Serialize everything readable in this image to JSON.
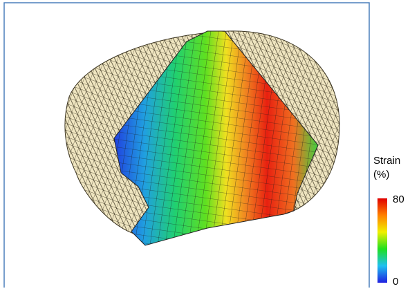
{
  "colorbar": {
    "title": "Strain",
    "unit": "(%)",
    "max": 80,
    "min": 0
  }
}
